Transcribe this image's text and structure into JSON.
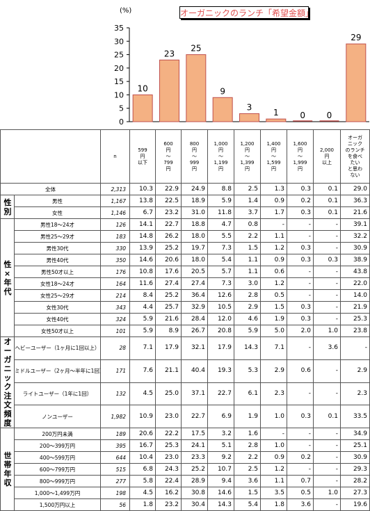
{
  "chart_data": {
    "type": "bar",
    "title": "オーガニックのランチ「希望金額」",
    "ylabel": "(%)",
    "ylim": [
      0,
      35
    ],
    "yticks": [
      0,
      5,
      10,
      15,
      20,
      25,
      30,
      35
    ],
    "values": [
      10,
      23,
      25,
      9,
      3,
      1,
      0,
      0,
      29
    ],
    "bar_color": "#f4b183",
    "bar_border": "#c0504d"
  },
  "table": {
    "n_header": "n",
    "columns": [
      "599円以下",
      "600円～799円",
      "800円～999円",
      "1,000円～1,199円",
      "1,200円～1,399円",
      "1,400円～1,599円",
      "1,600円～1,999円",
      "2,000円以上",
      "オーガニックのランチを食べたいと思わない"
    ],
    "col_display": [
      [
        "599",
        "円",
        "以下"
      ],
      [
        "600",
        "円",
        "～",
        "799",
        "円"
      ],
      [
        "800",
        "円",
        "～",
        "999",
        "円"
      ],
      [
        "1,000",
        "円",
        "～",
        "1,199",
        "円"
      ],
      [
        "1,200",
        "円",
        "～",
        "1,399",
        "円"
      ],
      [
        "1,400",
        "円",
        "～",
        "1,599",
        "円"
      ],
      [
        "1,600",
        "円",
        "～",
        "1,999",
        "円"
      ],
      [
        "2,000",
        "円",
        "以上"
      ],
      [
        "オーガ",
        "ニック",
        "のランチ",
        "を食べ",
        "たい",
        "と思わ",
        "ない"
      ]
    ],
    "groups": [
      {
        "label": "",
        "rows": [
          {
            "label": "全体",
            "n": "2,313",
            "v": [
              "10.3",
              "22.9",
              "24.9",
              "8.8",
              "2.5",
              "1.3",
              "0.3",
              "0.1",
              "29.0"
            ]
          }
        ]
      },
      {
        "label": "性別",
        "rows": [
          {
            "label": "男性",
            "n": "1,167",
            "v": [
              "13.8",
              "22.5",
              "18.9",
              "5.9",
              "1.4",
              "0.9",
              "0.2",
              "0.1",
              "36.3"
            ]
          },
          {
            "label": "女性",
            "n": "1,146",
            "v": [
              "6.7",
              "23.2",
              "31.0",
              "11.8",
              "3.7",
              "1.7",
              "0.3",
              "0.1",
              "21.6"
            ]
          }
        ]
      },
      {
        "label": "性×年代",
        "rows": [
          {
            "label": "男性18～24才",
            "n": "126",
            "v": [
              "14.1",
              "22.7",
              "18.8",
              "4.7",
              "0.8",
              "-",
              "-",
              "-",
              "39.1"
            ]
          },
          {
            "label": "男性25～29才",
            "n": "183",
            "v": [
              "14.8",
              "26.2",
              "18.0",
              "5.5",
              "2.2",
              "1.1",
              "-",
              "-",
              "32.2"
            ]
          },
          {
            "label": "男性30代",
            "n": "330",
            "v": [
              "13.9",
              "25.2",
              "19.7",
              "7.3",
              "1.5",
              "1.2",
              "0.3",
              "-",
              "30.9"
            ]
          },
          {
            "label": "男性40代",
            "n": "350",
            "v": [
              "14.6",
              "20.6",
              "18.0",
              "5.4",
              "1.1",
              "0.9",
              "0.3",
              "0.3",
              "38.9"
            ]
          },
          {
            "label": "男性50才以上",
            "n": "176",
            "v": [
              "10.8",
              "17.6",
              "20.5",
              "5.7",
              "1.1",
              "0.6",
              "-",
              "-",
              "43.8"
            ]
          },
          {
            "label": "女性18～24才",
            "n": "164",
            "v": [
              "11.6",
              "27.4",
              "27.4",
              "7.3",
              "3.0",
              "1.2",
              "-",
              "-",
              "22.0"
            ]
          },
          {
            "label": "女性25～29才",
            "n": "214",
            "v": [
              "8.4",
              "25.2",
              "36.4",
              "12.6",
              "2.8",
              "0.5",
              "-",
              "-",
              "14.0"
            ]
          },
          {
            "label": "女性30代",
            "n": "343",
            "v": [
              "4.4",
              "25.7",
              "32.9",
              "10.5",
              "2.9",
              "1.5",
              "0.3",
              "-",
              "21.9"
            ]
          },
          {
            "label": "女性40代",
            "n": "324",
            "v": [
              "5.9",
              "21.6",
              "28.4",
              "12.0",
              "4.6",
              "1.9",
              "0.3",
              "-",
              "25.3"
            ]
          },
          {
            "label": "女性50才以上",
            "n": "101",
            "v": [
              "5.9",
              "8.9",
              "26.7",
              "20.8",
              "5.9",
              "5.0",
              "2.0",
              "1.0",
              "23.8"
            ]
          }
        ]
      },
      {
        "label": "オーガニック注文頻度",
        "rows": [
          {
            "label": "ヘビーユーザー（1ヶ月に1回以上）",
            "n": "28",
            "v": [
              "7.1",
              "17.9",
              "32.1",
              "17.9",
              "14.3",
              "7.1",
              "-",
              "3.6",
              "-"
            ]
          },
          {
            "label": "ミドルユーザー（2ヶ月～半年に1回）",
            "n": "171",
            "v": [
              "7.6",
              "21.1",
              "40.4",
              "19.3",
              "5.3",
              "2.9",
              "0.6",
              "-",
              "2.9"
            ]
          },
          {
            "label": "ライトユーザー（1年に1回）",
            "n": "132",
            "v": [
              "4.5",
              "25.0",
              "37.1",
              "22.7",
              "6.1",
              "2.3",
              "-",
              "-",
              "2.3"
            ]
          },
          {
            "label": "ノンユーザー",
            "n": "1,982",
            "v": [
              "10.9",
              "23.0",
              "22.7",
              "6.9",
              "1.9",
              "1.0",
              "0.3",
              "0.1",
              "33.5"
            ]
          }
        ]
      },
      {
        "label": "世帯年収",
        "rows": [
          {
            "label": "200万円未満",
            "n": "189",
            "v": [
              "20.6",
              "22.2",
              "17.5",
              "3.2",
              "1.6",
              "-",
              "-",
              "-",
              "34.9"
            ]
          },
          {
            "label": "200～399万円",
            "n": "395",
            "v": [
              "16.7",
              "25.3",
              "24.1",
              "5.1",
              "2.8",
              "1.0",
              "-",
              "-",
              "25.1"
            ]
          },
          {
            "label": "400～599万円",
            "n": "644",
            "v": [
              "10.4",
              "23.0",
              "23.3",
              "9.2",
              "2.2",
              "0.9",
              "0.2",
              "-",
              "30.9"
            ]
          },
          {
            "label": "600～799万円",
            "n": "515",
            "v": [
              "6.8",
              "24.3",
              "25.2",
              "10.7",
              "2.5",
              "1.2",
              "-",
              "-",
              "29.3"
            ]
          },
          {
            "label": "800～999万円",
            "n": "277",
            "v": [
              "5.8",
              "22.4",
              "28.9",
              "9.4",
              "3.6",
              "1.1",
              "0.7",
              "-",
              "28.2"
            ]
          },
          {
            "label": "1,000～1,499万円",
            "n": "198",
            "v": [
              "4.5",
              "16.2",
              "30.8",
              "14.6",
              "1.5",
              "3.5",
              "0.5",
              "1.0",
              "27.3"
            ]
          },
          {
            "label": "1,500万円以上",
            "n": "56",
            "v": [
              "1.8",
              "23.2",
              "30.4",
              "14.3",
              "5.4",
              "1.8",
              "3.6",
              "-",
              "19.6"
            ]
          }
        ]
      }
    ]
  }
}
